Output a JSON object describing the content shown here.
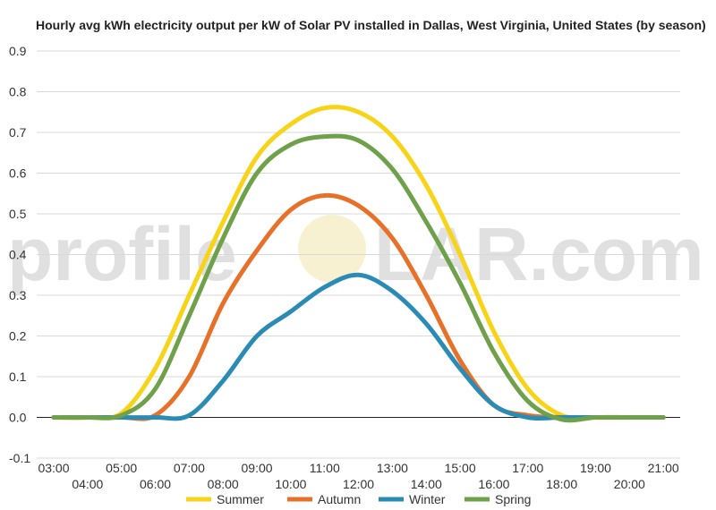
{
  "chart_data": {
    "type": "line",
    "title": "Hourly avg kWh electricity output per kW of Solar PV installed in Dallas, West Virginia, United States (by season)",
    "xlabel": "",
    "ylabel": "",
    "x": [
      "03:00",
      "04:00",
      "05:00",
      "06:00",
      "07:00",
      "08:00",
      "09:00",
      "10:00",
      "11:00",
      "12:00",
      "13:00",
      "14:00",
      "15:00",
      "16:00",
      "17:00",
      "18:00",
      "19:00",
      "20:00",
      "21:00"
    ],
    "ylim": [
      -0.1,
      0.9
    ],
    "yticks": [
      "-0.1",
      "0.0",
      "0.1",
      "0.2",
      "0.3",
      "0.4",
      "0.5",
      "0.6",
      "0.7",
      "0.8",
      "0.9"
    ],
    "grid": true,
    "legend_position": "bottom",
    "series": [
      {
        "name": "Summer",
        "color": "#f7d417",
        "values": [
          0,
          0,
          0.01,
          0.12,
          0.3,
          0.48,
          0.64,
          0.72,
          0.76,
          0.75,
          0.69,
          0.57,
          0.4,
          0.21,
          0.07,
          0.005,
          0,
          0,
          0
        ]
      },
      {
        "name": "Autumn",
        "color": "#e8712a",
        "values": [
          0,
          0,
          0,
          0.005,
          0.1,
          0.28,
          0.41,
          0.51,
          0.545,
          0.52,
          0.44,
          0.3,
          0.14,
          0.03,
          0.005,
          0,
          0,
          0,
          0
        ]
      },
      {
        "name": "Winter",
        "color": "#2a8bb5",
        "values": [
          0,
          0,
          0,
          0,
          0.005,
          0.09,
          0.2,
          0.26,
          0.32,
          0.35,
          0.31,
          0.23,
          0.12,
          0.03,
          0,
          0,
          0,
          0,
          0
        ]
      },
      {
        "name": "Spring",
        "color": "#6fa04a",
        "values": [
          0,
          0,
          0.005,
          0.07,
          0.25,
          0.44,
          0.6,
          0.67,
          0.69,
          0.68,
          0.61,
          0.48,
          0.33,
          0.16,
          0.04,
          -0.005,
          0,
          0,
          0
        ]
      }
    ]
  },
  "watermark": {
    "text_left": "profile",
    "text_right": "LAR.com"
  }
}
